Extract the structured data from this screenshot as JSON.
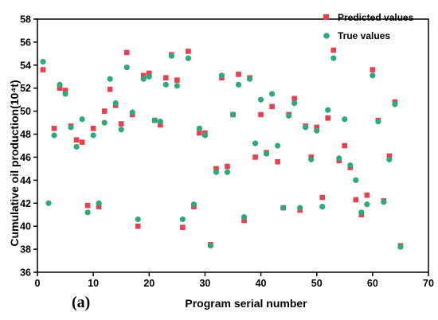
{
  "chart_data": {
    "type": "scatter",
    "panel_label": "(a)",
    "xlabel": "Program serial number",
    "ylabel": "Cumulative oil production(10⁴t)",
    "xlim": [
      0,
      70
    ],
    "ylim": [
      36,
      58
    ],
    "xticks": [
      0,
      10,
      20,
      30,
      40,
      50,
      60,
      70
    ],
    "yticks": [
      36,
      38,
      40,
      42,
      44,
      46,
      48,
      50,
      52,
      54,
      56,
      58
    ],
    "grid": false,
    "legend_position": "top-right",
    "series": [
      {
        "name": "Predicted values",
        "marker": "square",
        "color": "#e8414e",
        "points": [
          [
            1,
            53.6
          ],
          [
            3,
            48.5
          ],
          [
            4,
            52.0
          ],
          [
            5,
            51.8
          ],
          [
            6,
            48.7
          ],
          [
            7,
            47.5
          ],
          [
            8,
            47.3
          ],
          [
            9,
            41.8
          ],
          [
            10,
            48.5
          ],
          [
            11,
            41.7
          ],
          [
            12,
            50.0
          ],
          [
            13,
            51.9
          ],
          [
            14,
            50.5
          ],
          [
            15,
            48.9
          ],
          [
            16,
            55.1
          ],
          [
            17,
            49.7
          ],
          [
            18,
            40.0
          ],
          [
            19,
            53.1
          ],
          [
            20,
            53.3
          ],
          [
            21,
            49.2
          ],
          [
            22,
            48.8
          ],
          [
            23,
            52.9
          ],
          [
            24,
            54.9
          ],
          [
            25,
            52.7
          ],
          [
            26,
            39.9
          ],
          [
            27,
            55.2
          ],
          [
            28,
            41.7
          ],
          [
            29,
            48.1
          ],
          [
            30,
            48.1
          ],
          [
            31,
            38.4
          ],
          [
            32,
            45.0
          ],
          [
            33,
            52.9
          ],
          [
            34,
            45.2
          ],
          [
            35,
            49.7
          ],
          [
            36,
            53.2
          ],
          [
            37,
            40.5
          ],
          [
            38,
            52.9
          ],
          [
            39,
            46.0
          ],
          [
            40,
            49.7
          ],
          [
            41,
            46.4
          ],
          [
            42,
            50.4
          ],
          [
            43,
            45.6
          ],
          [
            44,
            41.6
          ],
          [
            45,
            49.7
          ],
          [
            46,
            51.1
          ],
          [
            47,
            41.4
          ],
          [
            48,
            48.7
          ],
          [
            49,
            46.0
          ],
          [
            50,
            48.6
          ],
          [
            51,
            42.5
          ],
          [
            52,
            49.4
          ],
          [
            53,
            55.3
          ],
          [
            54,
            45.7
          ],
          [
            55,
            47.0
          ],
          [
            56,
            45.1
          ],
          [
            57,
            42.3
          ],
          [
            58,
            41.0
          ],
          [
            59,
            42.7
          ],
          [
            60,
            53.6
          ],
          [
            61,
            49.2
          ],
          [
            62,
            42.2
          ],
          [
            63,
            46.1
          ],
          [
            64,
            50.8
          ],
          [
            65,
            38.3
          ]
        ]
      },
      {
        "name": "True values",
        "marker": "circle",
        "color": "#2eaa7a",
        "points": [
          [
            1,
            54.3
          ],
          [
            2,
            42.0
          ],
          [
            3,
            47.9
          ],
          [
            4,
            52.3
          ],
          [
            5,
            51.5
          ],
          [
            6,
            48.6
          ],
          [
            7,
            46.9
          ],
          [
            8,
            49.3
          ],
          [
            9,
            41.2
          ],
          [
            10,
            47.9
          ],
          [
            11,
            42.0
          ],
          [
            12,
            49.0
          ],
          [
            13,
            52.8
          ],
          [
            14,
            50.7
          ],
          [
            15,
            48.4
          ],
          [
            16,
            53.8
          ],
          [
            17,
            49.9
          ],
          [
            18,
            40.6
          ],
          [
            19,
            52.8
          ],
          [
            20,
            53.0
          ],
          [
            21,
            49.2
          ],
          [
            22,
            49.1
          ],
          [
            23,
            52.3
          ],
          [
            24,
            54.8
          ],
          [
            25,
            52.2
          ],
          [
            26,
            40.6
          ],
          [
            27,
            54.6
          ],
          [
            28,
            41.9
          ],
          [
            29,
            48.5
          ],
          [
            30,
            47.9
          ],
          [
            31,
            38.3
          ],
          [
            32,
            44.7
          ],
          [
            33,
            53.1
          ],
          [
            34,
            44.7
          ],
          [
            35,
            49.7
          ],
          [
            36,
            52.3
          ],
          [
            37,
            40.8
          ],
          [
            38,
            52.8
          ],
          [
            39,
            47.2
          ],
          [
            40,
            51.0
          ],
          [
            41,
            46.3
          ],
          [
            42,
            51.5
          ],
          [
            43,
            47.0
          ],
          [
            44,
            41.6
          ],
          [
            45,
            49.6
          ],
          [
            46,
            50.7
          ],
          [
            47,
            41.6
          ],
          [
            48,
            48.6
          ],
          [
            49,
            45.8
          ],
          [
            50,
            48.3
          ],
          [
            51,
            41.7
          ],
          [
            52,
            50.1
          ],
          [
            53,
            54.6
          ],
          [
            54,
            45.9
          ],
          [
            55,
            49.3
          ],
          [
            56,
            45.3
          ],
          [
            57,
            44.0
          ],
          [
            58,
            41.2
          ],
          [
            59,
            41.9
          ],
          [
            60,
            53.1
          ],
          [
            61,
            49.1
          ],
          [
            62,
            42.1
          ],
          [
            63,
            45.8
          ],
          [
            64,
            50.6
          ],
          [
            65,
            38.2
          ]
        ]
      }
    ]
  }
}
